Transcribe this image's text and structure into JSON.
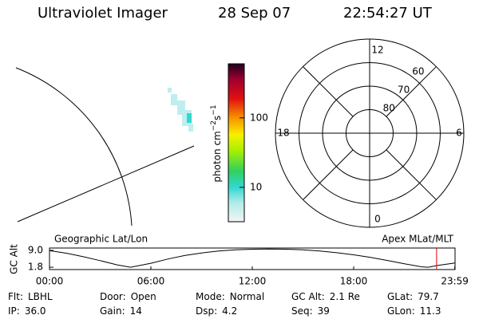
{
  "header": {
    "title": "Ultraviolet Imager",
    "date": "28 Sep 07",
    "time": "22:54:27 UT"
  },
  "colorbar": {
    "label": "photon cm",
    "exp1": "−2",
    "unit2": "s",
    "exp2": "−1",
    "log": true,
    "ylim": [
      3.2,
      600
    ],
    "yticks": [
      10,
      100
    ]
  },
  "polar": {
    "rlim": [
      90,
      50
    ],
    "rings": [
      80,
      70,
      60
    ],
    "mlt": [
      12,
      18,
      6,
      0
    ]
  },
  "altitude": {
    "title_left": "Geographic Lat/Lon",
    "title_right": "Apex MLat/MLT",
    "ylabel": "GC Alt",
    "x": [
      0,
      1,
      2,
      3,
      4,
      4.8,
      6,
      7,
      8,
      9,
      10,
      11,
      12,
      13,
      14,
      15,
      16,
      17,
      18,
      19,
      20,
      21,
      22,
      22.4,
      23,
      24
    ],
    "values": [
      8.9,
      7.8,
      6.3,
      4.6,
      2.8,
      1.8,
      3.5,
      5.3,
      6.8,
      7.9,
      8.7,
      9.2,
      9.5,
      9.6,
      9.5,
      9.2,
      8.7,
      8.0,
      7.1,
      6.0,
      4.7,
      3.3,
      2.0,
      1.8,
      2.6,
      3.6
    ],
    "ylim": [
      0.8,
      10
    ],
    "yticks": [
      1.8,
      {
        "value": 9,
        "label": "9.0"
      }
    ],
    "xlim": [
      0,
      24
    ],
    "xticks": [
      {
        "value": 0,
        "label": "00:00"
      },
      {
        "value": 6,
        "label": "06:00"
      },
      {
        "value": 12,
        "label": "12:00"
      },
      {
        "value": 18,
        "label": "18:00"
      },
      {
        "value": 23.983,
        "label": "23:59"
      }
    ],
    "marker": 22.908,
    "marker_color": "#e00000"
  },
  "info": [
    [
      {
        "label": "Flt:",
        "value": "LBHL"
      },
      {
        "label": "Door:",
        "value": "Open"
      },
      {
        "label": "Mode:",
        "value": "Normal"
      },
      {
        "label": "GC Alt:",
        "value": "2.1 Re"
      },
      {
        "label": "GLat:",
        "value": "79.7"
      }
    ],
    [
      {
        "label": "IP:",
        "value": "36.0"
      },
      {
        "label": "Gain:",
        "value": "14"
      },
      {
        "label": "Dsp:",
        "value": "4.2"
      },
      {
        "label": "Seq:",
        "value": "39"
      },
      {
        "label": "GLon:",
        "value": "11.3"
      }
    ]
  ]
}
